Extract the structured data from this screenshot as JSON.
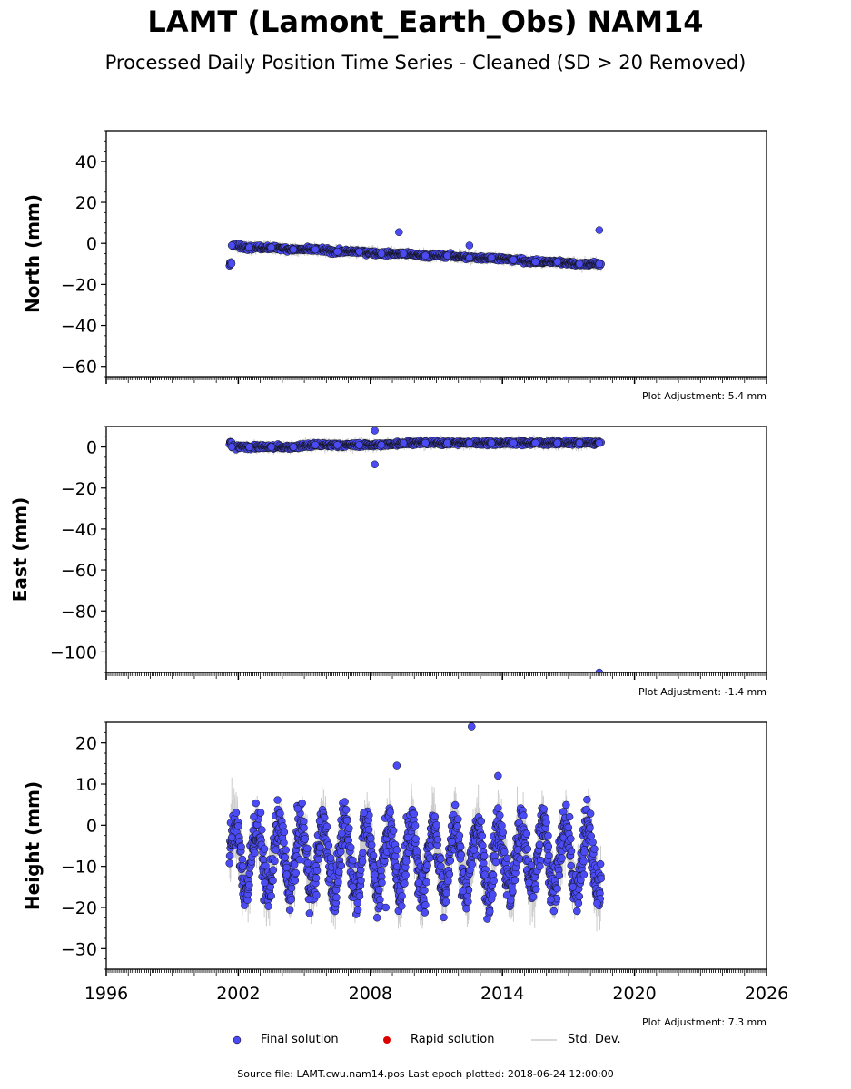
{
  "title": "LAMT (Lamont_Earth_Obs) NAM14",
  "subtitle": "Processed Daily Position Time Series - Cleaned (SD > 20 Removed)",
  "legend": {
    "final": "Final solution",
    "rapid": "Rapid solution",
    "std": "Std. Dev."
  },
  "colors": {
    "final": "#4b4bf5",
    "rapid": "#dd0000",
    "std": "#cccccc"
  },
  "source": "Source file: LAMT.cwu.nam14.pos  Last epoch plotted: 2018-06-24 12:00:00",
  "chart_data": [
    {
      "type": "scatter",
      "ylabel": "North (mm)",
      "xlim": [
        1996,
        2026
      ],
      "ylim": [
        -65,
        55
      ],
      "yticks": [
        40,
        20,
        0,
        -20,
        -40,
        -60
      ],
      "adjustment": "Plot Adjustment: 5.4 mm",
      "series": [
        {
          "name": "Final solution",
          "x": [
            2001.7,
            2002.5,
            2003.5,
            2004.5,
            2005.5,
            2006.5,
            2007.5,
            2008.5,
            2009.5,
            2010.5,
            2011.5,
            2012.5,
            2013.5,
            2014.5,
            2015.5,
            2016.5,
            2017.5,
            2018.4,
            2009.3,
            2012.5,
            2018.4
          ],
          "y": [
            -1,
            -2,
            -2,
            -3,
            -3,
            -4,
            -4,
            -5,
            -5,
            -6,
            -6,
            -7,
            -7,
            -8,
            -9,
            -9,
            -10,
            -10,
            5.5,
            -1,
            6.5
          ]
        }
      ]
    },
    {
      "type": "scatter",
      "ylabel": "East (mm)",
      "xlim": [
        1996,
        2026
      ],
      "ylim": [
        -110,
        10
      ],
      "yticks": [
        0,
        -20,
        -40,
        -60,
        -80,
        -100
      ],
      "adjustment": "Plot Adjustment: -1.4 mm",
      "series": [
        {
          "name": "Final solution",
          "x": [
            2001.7,
            2002.5,
            2003.5,
            2004.5,
            2005.5,
            2006.5,
            2007.5,
            2008.5,
            2009.5,
            2010.5,
            2011.5,
            2012.5,
            2013.5,
            2014.5,
            2015.5,
            2016.5,
            2017.5,
            2018.4,
            2008.2,
            2008.2,
            2018.4
          ],
          "y": [
            0,
            0,
            0,
            0,
            1,
            1,
            1,
            1,
            2,
            2,
            2,
            2,
            2,
            2,
            2,
            2,
            2,
            2,
            8,
            -8.5,
            -110
          ]
        }
      ]
    },
    {
      "type": "scatter",
      "ylabel": "Height (mm)",
      "xlim": [
        1996,
        2026
      ],
      "ylim": [
        -35,
        25
      ],
      "yticks": [
        20,
        10,
        0,
        -10,
        -20,
        -30
      ],
      "xticks": [
        1996,
        2002,
        2008,
        2014,
        2020,
        2026
      ],
      "adjustment": "Plot Adjustment: 7.3 mm",
      "series": [
        {
          "name": "Final solution",
          "x": [
            2001.7,
            2002.2,
            2002.7,
            2003.2,
            2003.7,
            2004.2,
            2004.7,
            2005.2,
            2005.7,
            2006.2,
            2006.7,
            2007.2,
            2007.7,
            2008.2,
            2008.7,
            2009.2,
            2009.7,
            2010.2,
            2010.7,
            2011.2,
            2011.7,
            2012.2,
            2012.7,
            2013.2,
            2013.7,
            2014.2,
            2014.7,
            2015.2,
            2015.7,
            2016.2,
            2016.7,
            2017.2,
            2017.7,
            2018.3,
            2012.6,
            2009.2,
            2013.8
          ],
          "y": [
            -3,
            -10,
            2,
            -14,
            -6,
            -12,
            4,
            -18,
            1,
            -8,
            -2,
            -15,
            3,
            -12,
            -20,
            -6,
            -3,
            -14,
            -8,
            -10,
            -4,
            -16,
            -6,
            -12,
            -9,
            -17,
            -6,
            -14,
            -10,
            -18,
            -8,
            -15,
            -12,
            -19,
            24,
            14.5,
            12
          ]
        }
      ]
    }
  ]
}
